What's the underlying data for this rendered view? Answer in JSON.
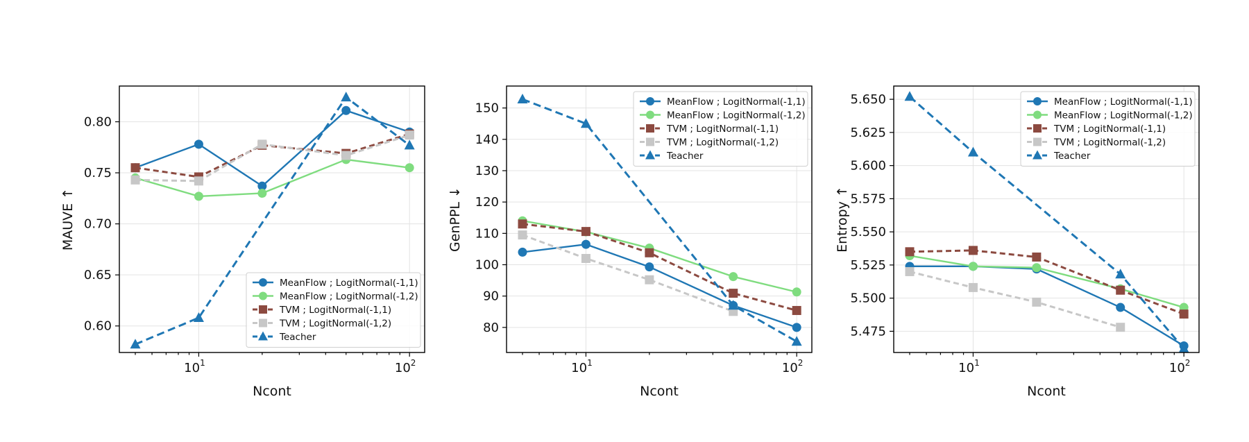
{
  "chart_data": [
    {
      "type": "line",
      "xlabel": "Ncont",
      "ylabel": "MAUVE ↑",
      "xscale": "log",
      "x": [
        5,
        10,
        20,
        50,
        100
      ],
      "xlim": [
        4.2,
        118
      ],
      "ylim": [
        0.574,
        0.835
      ],
      "yticks": [
        "0.60",
        "0.65",
        "0.70",
        "0.75",
        "0.80"
      ],
      "xticks": [
        {
          "base": "10",
          "exp": "1",
          "value": 10
        },
        {
          "base": "10",
          "exp": "2",
          "value": 100
        }
      ],
      "grid": true,
      "legend_position": "lower-right",
      "series": [
        {
          "name": "MeanFlow ; LogitNormal(-1,1)",
          "color": "#1f77b4",
          "marker": "circle",
          "dashed": false,
          "values": [
            0.755,
            0.778,
            0.737,
            0.811,
            0.79
          ]
        },
        {
          "name": "MeanFlow ; LogitNormal(-1,2)",
          "color": "#7fdc7f",
          "marker": "circle",
          "dashed": false,
          "values": [
            0.745,
            0.727,
            0.73,
            0.763,
            0.755
          ]
        },
        {
          "name": "TVM ; LogitNormal(-1,1)",
          "color": "#8c4a40",
          "marker": "square",
          "dashed": true,
          "values": [
            0.755,
            0.746,
            0.777,
            0.769,
            0.788
          ]
        },
        {
          "name": "TVM ; LogitNormal(-1,2)",
          "color": "#c7c7c7",
          "marker": "square",
          "dashed": true,
          "values": [
            0.743,
            0.742,
            0.778,
            0.767,
            0.787
          ]
        },
        {
          "name": "Teacher",
          "color": "#1f77b4",
          "marker": "triangle",
          "dashed": true,
          "values": [
            0.582,
            0.608,
            null,
            0.824,
            0.777
          ]
        }
      ]
    },
    {
      "type": "line",
      "xlabel": "Ncont",
      "ylabel": "GenPPL ↓",
      "xscale": "log",
      "x": [
        5,
        10,
        20,
        50,
        100
      ],
      "xlim": [
        4.2,
        118
      ],
      "ylim": [
        72,
        157
      ],
      "yticks": [
        "80",
        "90",
        "100",
        "110",
        "120",
        "130",
        "140",
        "150"
      ],
      "xticks": [
        {
          "base": "10",
          "exp": "1",
          "value": 10
        },
        {
          "base": "10",
          "exp": "2",
          "value": 100
        }
      ],
      "grid": true,
      "legend_position": "upper-right",
      "series": [
        {
          "name": "MeanFlow ; LogitNormal(-1,1)",
          "color": "#1f77b4",
          "marker": "circle",
          "dashed": false,
          "values": [
            104,
            106.5,
            99.3,
            87,
            80
          ]
        },
        {
          "name": "MeanFlow ; LogitNormal(-1,2)",
          "color": "#7fdc7f",
          "marker": "circle",
          "dashed": false,
          "values": [
            114,
            110.5,
            105.3,
            96.2,
            91.3
          ]
        },
        {
          "name": "TVM ; LogitNormal(-1,1)",
          "color": "#8c4a40",
          "marker": "square",
          "dashed": true,
          "values": [
            113,
            110.6,
            103.8,
            90.9,
            85.4
          ]
        },
        {
          "name": "TVM ; LogitNormal(-1,2)",
          "color": "#c7c7c7",
          "marker": "square",
          "dashed": true,
          "values": [
            109.5,
            102,
            95.2,
            85.1,
            null
          ]
        },
        {
          "name": "Teacher",
          "color": "#1f77b4",
          "marker": "triangle",
          "dashed": true,
          "values": [
            152.8,
            145,
            null,
            87,
            75.5
          ]
        }
      ]
    },
    {
      "type": "line",
      "xlabel": "Ncont",
      "ylabel": "Entropy ↑",
      "xscale": "log",
      "x": [
        5,
        10,
        20,
        50,
        100
      ],
      "xlim": [
        4.2,
        118
      ],
      "ylim": [
        5.459,
        5.66
      ],
      "yticks": [
        "5.475",
        "5.500",
        "5.525",
        "5.550",
        "5.575",
        "5.600",
        "5.625",
        "5.650"
      ],
      "xticks": [
        {
          "base": "10",
          "exp": "1",
          "value": 10
        },
        {
          "base": "10",
          "exp": "2",
          "value": 100
        }
      ],
      "grid": true,
      "legend_position": "upper-right",
      "series": [
        {
          "name": "MeanFlow ; LogitNormal(-1,1)",
          "color": "#1f77b4",
          "marker": "circle",
          "dashed": false,
          "values": [
            5.524,
            5.524,
            5.522,
            5.493,
            5.464
          ]
        },
        {
          "name": "MeanFlow ; LogitNormal(-1,2)",
          "color": "#7fdc7f",
          "marker": "circle",
          "dashed": false,
          "values": [
            5.532,
            5.524,
            5.523,
            5.507,
            5.493
          ]
        },
        {
          "name": "TVM ; LogitNormal(-1,1)",
          "color": "#8c4a40",
          "marker": "square",
          "dashed": true,
          "values": [
            5.535,
            5.536,
            5.531,
            5.506,
            5.488
          ]
        },
        {
          "name": "TVM ; LogitNormal(-1,2)",
          "color": "#c7c7c7",
          "marker": "square",
          "dashed": true,
          "values": [
            5.52,
            5.508,
            5.497,
            5.478,
            null
          ]
        },
        {
          "name": "Teacher",
          "color": "#1f77b4",
          "marker": "triangle",
          "dashed": true,
          "values": [
            5.652,
            5.61,
            null,
            5.518,
            5.462
          ]
        }
      ]
    }
  ]
}
